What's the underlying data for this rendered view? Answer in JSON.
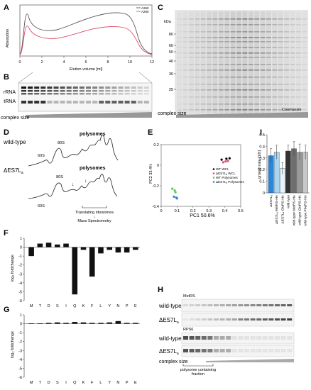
{
  "panels": {
    "A": {
      "letter": "A",
      "ylabel": "Absorption",
      "xlabel": "Elution volume [ml]",
      "legend": [
        "A260",
        "A280"
      ],
      "line_colors": [
        "#555555",
        "#e0506e"
      ],
      "xticks": [
        "0",
        "2",
        "4",
        "6",
        "8",
        "10",
        "12"
      ]
    },
    "B": {
      "letter": "B",
      "rows": [
        "rRNA",
        "tRNA"
      ],
      "footer": "complex size"
    },
    "C": {
      "letter": "C",
      "unit": "kDa",
      "markers": [
        "80",
        "60",
        "50",
        "40",
        "30",
        "25"
      ],
      "footer_left": "complex size",
      "footer_right": "Coomassie"
    },
    "D": {
      "letter": "D",
      "wt_label": "wild-type",
      "mut_label": "ΔES7L",
      "mut_sub": "a",
      "peaks_wt": [
        "60S",
        "80S",
        "polysomes"
      ],
      "peaks_mut": [
        "60S",
        "80S",
        "polysomes"
      ],
      "annotation_line1": "Translating ribosomes",
      "annotation_arrow": "↓",
      "annotation_line2": "Mass Spectrometry"
    },
    "E": {
      "letter": "E",
      "xlabel": "PC1 50.6%",
      "ylabel": "PC2 33.4%",
      "legend": [
        "WT WCL",
        "ΔES7Lₐ WCL",
        "WT Polysomes",
        "ΔES7Lₐ Polysomes"
      ],
      "colors": [
        "#000000",
        "#e0506e",
        "#5cc85c",
        "#3a7fd8"
      ]
    },
    "F": {
      "letter": "F",
      "ylabel": "log₂ foldchange"
    },
    "G": {
      "letter": "G",
      "ylabel": "log₂ foldchange"
    },
    "H": {
      "letter": "H",
      "blot1_label": "MetRS",
      "blot2_label": "RPS6",
      "row_wt": "wild-type",
      "row_mut": "ΔES7L",
      "row_mut_sub": "a",
      "footer": "complex size",
      "bracket_line1": "polysome containing",
      "bracket_line2": "fraction"
    },
    "I": {
      "letter": "I",
      "ylabel": "growth rate [1/h]"
    }
  },
  "chart_data": [
    {
      "panel": "E",
      "type": "scatter",
      "xlabel": "PC1 50.6%",
      "ylabel": "PC2 33.4%",
      "xlim": [
        0,
        0.5
      ],
      "ylim": [
        -0.5,
        0.2
      ],
      "xticks": [
        "0",
        "0.1",
        "0.2",
        "0.3",
        "0.4",
        "0.5"
      ],
      "yticks": [
        "0.2",
        "0",
        "-0.2",
        "-0.4"
      ],
      "series": [
        {
          "name": "WT WCL",
          "points": [
            [
              0.38,
              0.03
            ],
            [
              0.41,
              0.04
            ],
            [
              0.43,
              0.045
            ]
          ]
        },
        {
          "name": "ΔES7Lₐ WCL",
          "points": [
            [
              0.39,
              0.0
            ],
            [
              0.405,
              0.01
            ],
            [
              0.42,
              0.015
            ]
          ]
        },
        {
          "name": "WT Polysomes",
          "points": [
            [
              0.07,
              -0.3
            ],
            [
              0.085,
              -0.32
            ],
            [
              0.09,
              -0.34
            ]
          ]
        },
        {
          "name": "ΔES7Lₐ Polysomes",
          "points": [
            [
              0.08,
              -0.39
            ],
            [
              0.095,
              -0.4
            ],
            [
              0.1,
              -0.41
            ]
          ]
        }
      ]
    },
    {
      "panel": "F",
      "type": "bar",
      "ylabel": "log₂ foldchange",
      "categories": [
        "M",
        "T",
        "D",
        "S",
        "I",
        "Q",
        "K",
        "F",
        "L",
        "Y",
        "N",
        "P",
        "E"
      ],
      "values": [
        -1.0,
        0.4,
        0.5,
        0.3,
        0.4,
        -5.3,
        -0.3,
        -3.3,
        -0.7,
        -0.3,
        -0.6,
        -0.6,
        -0.3
      ],
      "ylim": [
        -6,
        1
      ],
      "yticks": [
        "1",
        "0",
        "-1",
        "-2",
        "-3",
        "-4",
        "-5",
        "-6"
      ]
    },
    {
      "panel": "G",
      "type": "bar",
      "ylabel": "log₂ foldchange",
      "categories": [
        "M",
        "T",
        "D",
        "S",
        "I",
        "Q",
        "K",
        "F",
        "L",
        "Y",
        "N",
        "P",
        "E"
      ],
      "values": [
        0.05,
        0.05,
        0.1,
        0.15,
        0.1,
        0.2,
        0.15,
        0.1,
        0.1,
        0.15,
        0.3,
        0.1,
        0.1
      ],
      "ylim": [
        -6,
        1
      ],
      "yticks": [
        "1",
        "0",
        "-1",
        "-2",
        "-3",
        "-4",
        "-5",
        "-6"
      ]
    },
    {
      "panel": "I",
      "type": "bar",
      "ylabel": "growth rate [1/h]",
      "ylim": [
        0,
        0.5
      ],
      "yticks": [
        "0.5",
        "0.4",
        "0.3",
        "0.2",
        "0.1",
        "0"
      ],
      "categories": [
        "ΔES7Lₐ",
        "ΔES7Lₐ MetRS-HA",
        "ΔES7Lₐ GluRS-HA",
        "wild-type",
        "wild-type MetRS-HA",
        "wild-type GluRS-HA",
        "wild-type PheRS-HA"
      ],
      "values": [
        0.32,
        0.35,
        0.21,
        0.36,
        0.38,
        0.35,
        0.35
      ],
      "errors": [
        0.06,
        0.06,
        0.05,
        0.05,
        0.06,
        0.07,
        0.06
      ],
      "colors": [
        "#2b86d9",
        "#a9d4f2",
        "#e6f3fb",
        "#333333",
        "#6e6e6e",
        "#9a9a9a",
        "#c8c8c8"
      ]
    }
  ]
}
